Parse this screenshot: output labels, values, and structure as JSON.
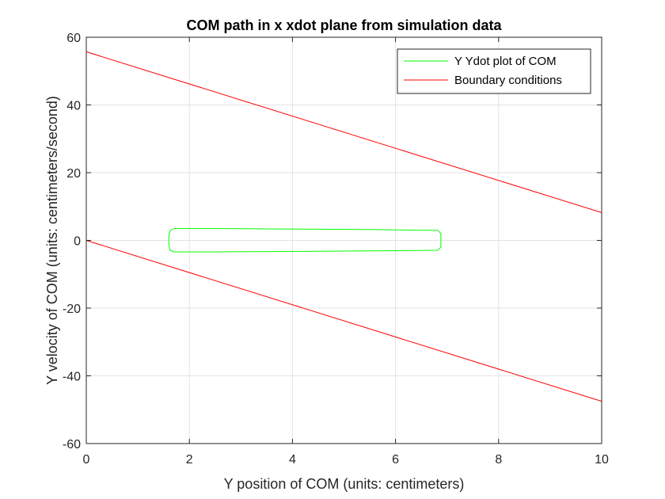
{
  "chart_data": {
    "type": "line",
    "title": "COM path in x xdot plane from simulation data",
    "xlabel": "Y position of COM (units: centimeters)",
    "ylabel": "Y velocity of COM (units: centimeters/second)",
    "xlim": [
      0,
      10
    ],
    "ylim": [
      -60,
      60
    ],
    "x_ticks": [
      0,
      2,
      4,
      6,
      8,
      10
    ],
    "y_ticks": [
      -60,
      -40,
      -20,
      0,
      20,
      40,
      60
    ],
    "x_tick_labels": [
      "0",
      "2",
      "4",
      "6",
      "8",
      "10"
    ],
    "y_tick_labels": [
      "-60",
      "-40",
      "-20",
      "0",
      "20",
      "40",
      "60"
    ],
    "grid": true,
    "legend_position": "top-right",
    "series": [
      {
        "name": "Y Ydot plot of COM",
        "color": "#00ff00",
        "x": [
          1.7,
          2.5,
          3.5,
          4.5,
          5.5,
          6.5,
          6.82,
          6.88,
          6.88,
          6.82,
          6.5,
          5.5,
          4.5,
          3.5,
          2.5,
          1.7,
          1.62,
          1.6,
          1.6,
          1.62,
          1.7
        ],
        "y": [
          3.5,
          3.5,
          3.4,
          3.3,
          3.2,
          3.0,
          3.0,
          2.0,
          -2.0,
          -2.9,
          -3.0,
          -3.1,
          -3.2,
          -3.3,
          -3.4,
          -3.4,
          -2.8,
          -1.0,
          1.0,
          2.8,
          3.5
        ]
      },
      {
        "name": "Boundary conditions",
        "color": "#ff0000",
        "x": [
          0,
          10
        ],
        "y": [
          55.7,
          8.2
        ]
      },
      {
        "name": "",
        "color": "#ff0000",
        "x": [
          0,
          10
        ],
        "y": [
          0,
          -47.5
        ]
      }
    ]
  }
}
